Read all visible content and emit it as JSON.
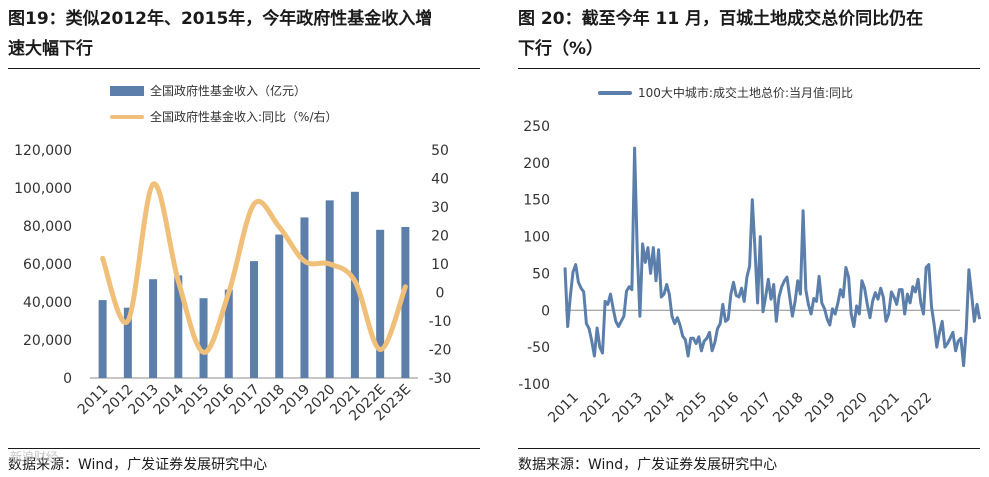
{
  "left": {
    "title": "图19：类似2012年、2015年，今年政府性基金收入增速大幅下行",
    "title_line1": "图19：类似2012年、2015年，今年政府性基金收入增",
    "title_line2": "速大幅下行",
    "source": "数据来源：Wind，广发证券发展研究中心",
    "chart_data": {
      "type": "bar",
      "categories": [
        "2011",
        "2012",
        "2013",
        "2014",
        "2015",
        "2016",
        "2017",
        "2018",
        "2019",
        "2020",
        "2021",
        "2022E",
        "2023E"
      ],
      "series": [
        {
          "name": "全国政府性基金收入（亿元）",
          "axis": "left",
          "color": "#5b7faa",
          "values": [
            41000,
            37000,
            52000,
            54000,
            42000,
            46500,
            61500,
            75500,
            84500,
            93500,
            98000,
            78000,
            79500
          ]
        },
        {
          "name": "全国政府性基金收入:同比（%/右）",
          "axis": "right",
          "type": "line",
          "color": "#f0c07a",
          "values": [
            12,
            -10,
            38,
            4,
            -21,
            0,
            31,
            23,
            11,
            10,
            4,
            -20,
            2
          ]
        }
      ],
      "ylim_left": [
        0,
        120000
      ],
      "yticks_left": [
        "0",
        "20,000",
        "40,000",
        "60,000",
        "80,000",
        "100,000",
        "120,000"
      ],
      "yticks_left_values": [
        0,
        20000,
        40000,
        60000,
        80000,
        100000,
        120000
      ],
      "ylim_right": [
        -30,
        50
      ],
      "yticks_right": [
        "-30",
        "-20",
        "-10",
        "0",
        "10",
        "20",
        "30",
        "40",
        "50"
      ],
      "yticks_right_values": [
        -30,
        -20,
        -10,
        0,
        10,
        20,
        30,
        40,
        50
      ],
      "legend": [
        "全国政府性基金收入（亿元）",
        "全国政府性基金收入:同比（%/右）"
      ],
      "legend_position": "top-left"
    }
  },
  "right": {
    "title": "图 20：截至今年 11 月，百城土地成交总价同比仍在下行（%）",
    "title_line1": "图 20：截至今年 11 月，百城土地成交总价同比仍在",
    "title_line2": "下行（%）",
    "source": "数据来源：Wind，广发证券发展研究中心",
    "chart_data": {
      "type": "line",
      "title": "",
      "legend": [
        "100大中城市:成交土地总价:当月值:同比"
      ],
      "legend_position": "top-left",
      "color": "#5b7faa",
      "x_ticks": [
        "2011",
        "2012",
        "2013",
        "2014",
        "2015",
        "2016",
        "2017",
        "2018",
        "2019",
        "2020",
        "2021",
        "2022"
      ],
      "ylim": [
        -100,
        250
      ],
      "yticks": [
        "-100",
        "-50",
        "0",
        "50",
        "100",
        "150",
        "200",
        "250"
      ],
      "yticks_values": [
        -100,
        -50,
        0,
        50,
        100,
        150,
        200,
        250
      ],
      "x_start": 2011.0,
      "x_step": 0.0833,
      "values": [
        58,
        -22,
        20,
        52,
        62,
        38,
        30,
        25,
        -18,
        -25,
        -42,
        -62,
        -24,
        -50,
        -58,
        12,
        8,
        22,
        2,
        -15,
        -22,
        -15,
        -8,
        26,
        32,
        28,
        220,
        82,
        -8,
        90,
        65,
        85,
        50,
        85,
        40,
        82,
        18,
        22,
        35,
        22,
        -8,
        -18,
        -10,
        -20,
        -35,
        -40,
        -62,
        -38,
        -38,
        -45,
        -36,
        -55,
        -42,
        -38,
        -30,
        -55,
        -44,
        -25,
        -18,
        8,
        -15,
        -12,
        22,
        38,
        20,
        18,
        30,
        12,
        45,
        60,
        150,
        85,
        10,
        100,
        -2,
        18,
        42,
        15,
        35,
        -15,
        18,
        32,
        40,
        45,
        18,
        -8,
        12,
        40,
        22,
        135,
        28,
        8,
        -5,
        16,
        12,
        46,
        10,
        2,
        -12,
        -20,
        2,
        -5,
        10,
        28,
        18,
        58,
        45,
        -5,
        -22,
        6,
        -5,
        40,
        30,
        8,
        -10,
        12,
        24,
        15,
        30,
        18,
        -15,
        -5,
        25,
        18,
        8,
        28,
        28,
        -5,
        22,
        10,
        32,
        25,
        42,
        10,
        -5,
        58,
        62,
        5,
        -20,
        -50,
        -30,
        -15,
        -50,
        -45,
        -38,
        -30,
        -55,
        -42,
        -38,
        -75,
        -25,
        55,
        22,
        -15,
        8,
        -12
      ]
    }
  },
  "watermark": "新浪财经"
}
